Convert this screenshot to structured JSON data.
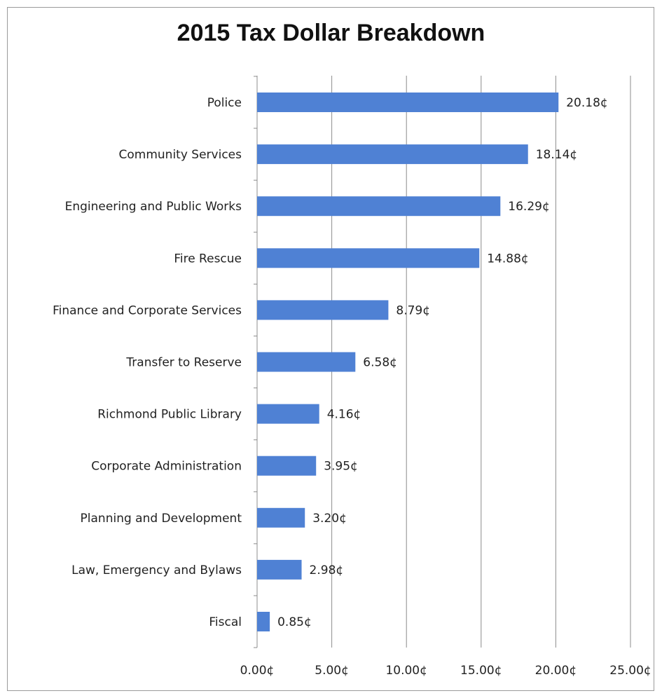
{
  "chart_data": {
    "type": "bar",
    "orientation": "horizontal",
    "title": "2015 Tax Dollar Breakdown",
    "unit_suffix": "¢",
    "categories": [
      "Police",
      "Community Services",
      "Engineering and Public Works",
      "Fire Rescue",
      "Finance and Corporate Services",
      "Transfer to Reserve",
      "Richmond Public Library",
      "Corporate Administration",
      "Planning and Development",
      "Law, Emergency and Bylaws",
      "Fiscal"
    ],
    "values": [
      20.18,
      18.14,
      16.29,
      14.88,
      8.79,
      6.58,
      4.16,
      3.95,
      3.2,
      2.98,
      0.85
    ],
    "data_labels": [
      "20.18¢",
      "18.14¢",
      "16.29¢",
      "14.88¢",
      "8.79¢",
      "6.58¢",
      "4.16¢",
      "3.95¢",
      "3.20¢",
      "2.98¢",
      "0.85¢"
    ],
    "xlim": [
      0,
      25
    ],
    "xticks": [
      0,
      5,
      10,
      15,
      20,
      25
    ],
    "xtick_labels": [
      "0.00¢",
      "5.00¢",
      "10.00¢",
      "15.00¢",
      "20.00¢",
      "25.00¢"
    ],
    "grid": "vertical",
    "legend": "none",
    "bar_color": "#4f81d4",
    "grid_color": "#8c8c8c"
  }
}
